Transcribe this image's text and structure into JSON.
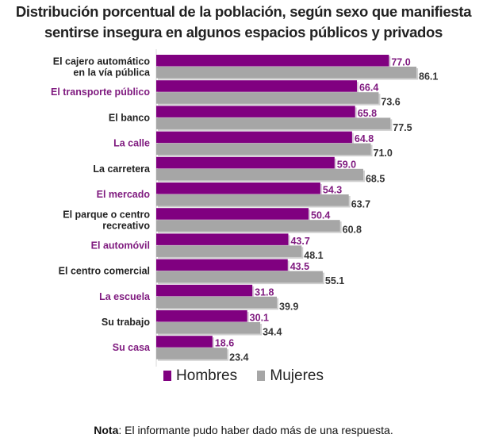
{
  "chart_data": {
    "type": "bar",
    "orientation": "horizontal",
    "title": [
      "Distribución porcentual de la población, según sexo que manifiesta",
      "sentirse insegura en algunos espacios públicos y privados"
    ],
    "categories": [
      [
        "El cajero automático",
        "en la vía pública"
      ],
      [
        "El transporte público"
      ],
      [
        "El banco"
      ],
      [
        "La calle"
      ],
      [
        "La carretera"
      ],
      [
        "El mercado"
      ],
      [
        "El parque o centro",
        "recreativo"
      ],
      [
        "El automóvil"
      ],
      [
        "El centro comercial"
      ],
      [
        "La escuela"
      ],
      [
        "Su trabajo"
      ],
      [
        "Su casa"
      ]
    ],
    "series": [
      {
        "name": "Hombres",
        "color": "#800080",
        "values": [
          77.0,
          66.4,
          65.8,
          64.8,
          59.0,
          54.3,
          50.4,
          43.7,
          43.5,
          31.8,
          30.1,
          18.6
        ]
      },
      {
        "name": "Mujeres",
        "color": "#a6a6a6",
        "values": [
          86.1,
          73.6,
          77.5,
          71.0,
          68.5,
          63.7,
          60.8,
          48.1,
          55.1,
          39.9,
          34.4,
          23.4
        ]
      }
    ],
    "label_colors": [
      "#222222",
      "#7f1a7f"
    ],
    "xlim": [
      0,
      100
    ],
    "grid": false,
    "legend": "bottom"
  },
  "note": {
    "bold": "Nota",
    "text": ": El informante pudo haber dado más de una respuesta."
  }
}
